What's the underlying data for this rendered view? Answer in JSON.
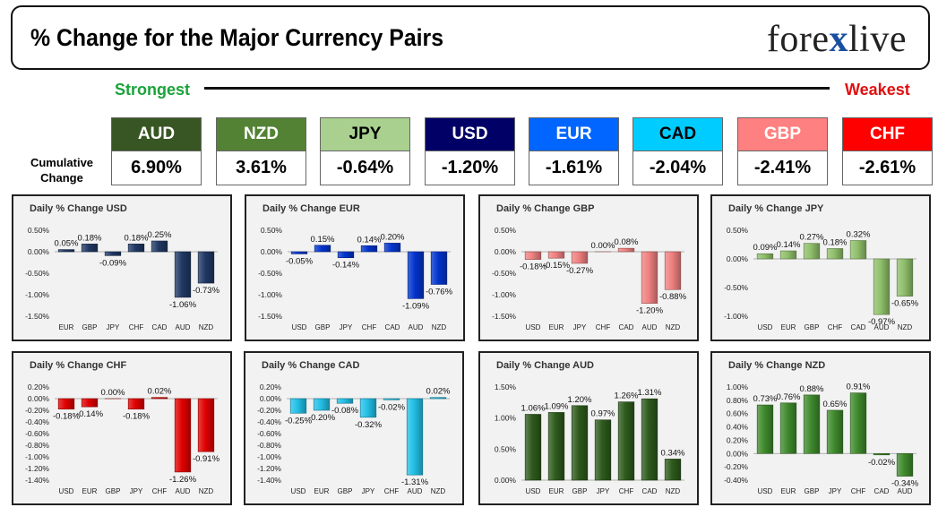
{
  "header": {
    "title": "% Change for the Major Currency Pairs",
    "logo_left": "fore",
    "logo_mid": "x",
    "logo_right": "live"
  },
  "scale": {
    "strongest": "Strongest",
    "weakest": "Weakest"
  },
  "cumulative": {
    "label_line1": "Cumulative",
    "label_line2": "Change",
    "currencies": [
      {
        "code": "AUD",
        "value": "6.90%",
        "bg": "#375623",
        "fg": "#ffffff"
      },
      {
        "code": "NZD",
        "value": "3.61%",
        "bg": "#548235",
        "fg": "#ffffff"
      },
      {
        "code": "JPY",
        "value": "-0.64%",
        "bg": "#a9d08e",
        "fg": "#000000"
      },
      {
        "code": "USD",
        "value": "-1.20%",
        "bg": "#000066",
        "fg": "#ffffff"
      },
      {
        "code": "EUR",
        "value": "-1.61%",
        "bg": "#0066ff",
        "fg": "#ffffff"
      },
      {
        "code": "CAD",
        "value": "-2.04%",
        "bg": "#00ccff",
        "fg": "#000000"
      },
      {
        "code": "GBP",
        "value": "-2.41%",
        "bg": "#ff8080",
        "fg": "#ffffff"
      },
      {
        "code": "CHF",
        "value": "-2.61%",
        "bg": "#ff0000",
        "fg": "#ffffff"
      }
    ]
  },
  "chart_data": [
    {
      "type": "bar",
      "title": "Daily % Change USD",
      "color": "#203864",
      "categories": [
        "EUR",
        "GBP",
        "JPY",
        "CHF",
        "CAD",
        "AUD",
        "NZD"
      ],
      "values": [
        0.05,
        0.18,
        -0.09,
        0.18,
        0.25,
        -1.06,
        -0.73
      ],
      "labels": [
        "0.05%",
        "0.18%",
        "-0.09%",
        "0.18%",
        "0.25%",
        "-1.06%",
        "-0.73%"
      ],
      "ylim": [
        -1.5,
        0.5
      ],
      "yticks": [
        0.5,
        0,
        -0.5,
        -1,
        -1.5
      ],
      "ytick_labels": [
        "0.50%",
        "0.00%",
        "-0.50%",
        "-1.00%",
        "-1.50%"
      ]
    },
    {
      "type": "bar",
      "title": "Daily % Change EUR",
      "color": "#0033cc",
      "categories": [
        "USD",
        "GBP",
        "JPY",
        "CHF",
        "CAD",
        "AUD",
        "NZD"
      ],
      "values": [
        -0.05,
        0.15,
        -0.14,
        0.14,
        0.2,
        -1.09,
        -0.76
      ],
      "labels": [
        "-0.05%",
        "0.15%",
        "-0.14%",
        "0.14%",
        "0.20%",
        "-1.09%",
        "-0.76%"
      ],
      "ylim": [
        -1.5,
        0.5
      ],
      "yticks": [
        0.5,
        0,
        -0.5,
        -1,
        -1.5
      ],
      "ytick_labels": [
        "0.50%",
        "0.00%",
        "-0.50%",
        "-1.00%",
        "-1.50%"
      ]
    },
    {
      "type": "bar",
      "title": "Daily % Change GBP",
      "color": "#f08080",
      "categories": [
        "USD",
        "EUR",
        "JPY",
        "CHF",
        "CAD",
        "AUD",
        "NZD"
      ],
      "values": [
        -0.18,
        -0.15,
        -0.27,
        0.0,
        0.08,
        -1.2,
        -0.88
      ],
      "labels": [
        "-0.18%",
        "-0.15%",
        "-0.27%",
        "0.00%",
        "0.08%",
        "-1.20%",
        "-0.88%"
      ],
      "ylim": [
        -1.5,
        0.5
      ],
      "yticks": [
        0.5,
        0,
        -0.5,
        -1,
        -1.5
      ],
      "ytick_labels": [
        "0.50%",
        "0.00%",
        "-0.50%",
        "-1.00%",
        "-1.50%"
      ]
    },
    {
      "type": "bar",
      "title": "Daily % Change JPY",
      "color": "#8fbf6a",
      "categories": [
        "USD",
        "EUR",
        "GBP",
        "CHF",
        "CAD",
        "AUD",
        "NZD"
      ],
      "values": [
        0.09,
        0.14,
        0.27,
        0.18,
        0.32,
        -0.97,
        -0.65
      ],
      "labels": [
        "0.09%",
        "0.14%",
        "0.27%",
        "0.18%",
        "0.32%",
        "-0.97%",
        "-0.65%"
      ],
      "ylim": [
        -1.0,
        0.5
      ],
      "yticks": [
        0.5,
        0,
        -0.5,
        -1
      ],
      "ytick_labels": [
        "0.50%",
        "0.00%",
        "-0.50%",
        "-1.00%"
      ]
    },
    {
      "type": "bar",
      "title": "Daily % Change CHF",
      "color": "#e00000",
      "categories": [
        "USD",
        "EUR",
        "GBP",
        "JPY",
        "CHF",
        "AUD",
        "NZD"
      ],
      "values": [
        -0.18,
        -0.14,
        0.0,
        -0.18,
        0.02,
        -1.26,
        -0.91
      ],
      "labels": [
        "-0.18%",
        "-0.14%",
        "0.00%",
        "-0.18%",
        "0.02%",
        "-1.26%",
        "-0.91%"
      ],
      "ylim": [
        -1.4,
        0.2
      ],
      "yticks": [
        0.2,
        0,
        -0.2,
        -0.4,
        -0.6,
        -0.8,
        -1.0,
        -1.2,
        -1.4
      ],
      "ytick_labels": [
        "0.20%",
        "0.00%",
        "-0.20%",
        "-0.40%",
        "-0.60%",
        "-0.80%",
        "-1.00%",
        "-1.20%",
        "-1.40%"
      ]
    },
    {
      "type": "bar",
      "title": "Daily % Change CAD",
      "color": "#22bfe6",
      "categories": [
        "USD",
        "EUR",
        "GBP",
        "JPY",
        "CHF",
        "AUD",
        "NZD"
      ],
      "values": [
        -0.25,
        -0.2,
        -0.08,
        -0.32,
        -0.02,
        -1.31,
        0.02
      ],
      "labels": [
        "-0.25%",
        "-0.20%",
        "-0.08%",
        "-0.32%",
        "-0.02%",
        "-1.31%",
        "0.02%"
      ],
      "ylim": [
        -1.4,
        0.2
      ],
      "yticks": [
        0.2,
        0,
        -0.2,
        -0.4,
        -0.6,
        -0.8,
        -1.0,
        -1.2,
        -1.4
      ],
      "ytick_labels": [
        "0.20%",
        "0.00%",
        "-0.20%",
        "-0.40%",
        "-0.60%",
        "-0.80%",
        "-1.00%",
        "-1.20%",
        "-1.40%"
      ]
    },
    {
      "type": "bar",
      "title": "Daily % Change AUD",
      "color": "#2e5a1c",
      "categories": [
        "USD",
        "EUR",
        "GBP",
        "JPY",
        "CHF",
        "CAD",
        "NZD"
      ],
      "values": [
        1.06,
        1.09,
        1.2,
        0.97,
        1.26,
        1.31,
        0.34
      ],
      "labels": [
        "1.06%",
        "1.09%",
        "1.20%",
        "0.97%",
        "1.26%",
        "1.31%",
        "0.34%"
      ],
      "ylim": [
        0,
        1.5
      ],
      "yticks": [
        1.5,
        1.0,
        0.5,
        0
      ],
      "ytick_labels": [
        "1.50%",
        "1.00%",
        "0.50%",
        "0.00%"
      ]
    },
    {
      "type": "bar",
      "title": "Daily % Change NZD",
      "color": "#3f8a2c",
      "categories": [
        "USD",
        "EUR",
        "GBP",
        "JPY",
        "CHF",
        "CAD",
        "AUD"
      ],
      "values": [
        0.73,
        0.76,
        0.88,
        0.65,
        0.91,
        -0.02,
        -0.34
      ],
      "labels": [
        "0.73%",
        "0.76%",
        "0.88%",
        "0.65%",
        "0.91%",
        "-0.02%",
        "-0.34%"
      ],
      "ylim": [
        -0.4,
        1.0
      ],
      "yticks": [
        1.0,
        0.8,
        0.6,
        0.4,
        0.2,
        0,
        -0.2,
        -0.4
      ],
      "ytick_labels": [
        "1.00%",
        "0.80%",
        "0.60%",
        "0.40%",
        "0.20%",
        "0.00%",
        "-0.20%",
        "-0.40%"
      ]
    }
  ]
}
